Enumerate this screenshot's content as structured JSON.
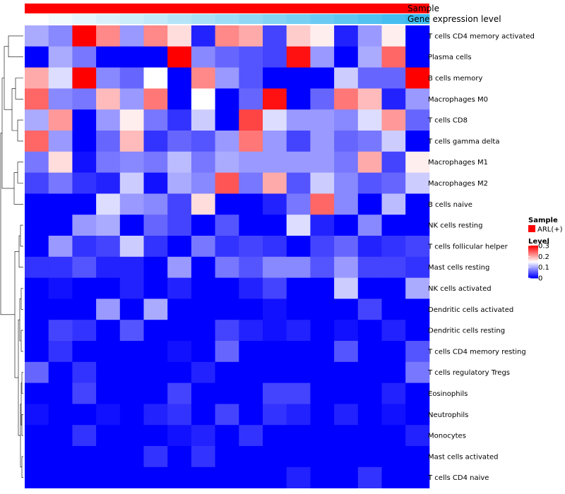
{
  "chart_data": {
    "type": "heatmap",
    "annotation_labels": [
      "Sample",
      "Gene expression level"
    ],
    "sample_annotation": {
      "label": "ARL(+)",
      "color": "#ff0000"
    },
    "expression_colors": [
      "#ffffff",
      "#f2fafe",
      "#e6f6fd",
      "#daf1fc",
      "#cdedfb",
      "#c1e9fa",
      "#b5e4f9",
      "#a8e0f8",
      "#9cdcf7",
      "#90d7f6",
      "#84d3f5",
      "#77cff4",
      "#6bcaf3",
      "#5fc6f2",
      "#52c2f1",
      "#46bdf0",
      "#3ab9ef",
      "#2db5ee"
    ],
    "legend": {
      "sample_title": "Sample",
      "sample_entry": "ARL(+)",
      "level_title": "Level",
      "ticks": [
        {
          "value": 0.3,
          "label": "0.3"
        },
        {
          "value": 0.2,
          "label": "0.2"
        },
        {
          "value": 0.1,
          "label": "0.1"
        },
        {
          "value": 0,
          "label": "0"
        }
      ]
    },
    "color_scale": {
      "min": 0,
      "mid": 0.15,
      "max": 0.3,
      "low": "#0000ff",
      "mid_color": "#ffffff",
      "high": "#ff0000"
    },
    "rows": [
      "T cells CD4 memory activated",
      "Plasma cells",
      "B cells memory",
      "Macrophages M0",
      "T cells CD8",
      "T cells gamma delta",
      "Macrophages M1",
      "Macrophages M2",
      "B cells naive",
      "NK cells resting",
      "T cells follicular helper",
      "Mast cells resting",
      "NK cells activated",
      "Dendritic cells activated",
      "Dendritic cells resting",
      "T cells CD4 memory resting",
      "T cells regulatory  Tregs",
      "Eosinophils",
      "Neutrophils",
      "Monocytes",
      "Mast cells activated",
      "T cells CD4 naive"
    ],
    "values": [
      [
        0.1,
        0.08,
        0.3,
        0.22,
        0.09,
        0.22,
        0.17,
        0.02,
        0.22,
        0.2,
        0.04,
        0.18,
        0.16,
        0.02,
        0.09,
        0.16,
        0.0
      ],
      [
        0.0,
        0.1,
        0.07,
        0.0,
        0.0,
        0.0,
        0.3,
        0.08,
        0.06,
        0.05,
        0.04,
        0.29,
        0.09,
        0.0,
        0.1,
        0.24,
        0.0
      ],
      [
        0.2,
        0.13,
        0.3,
        0.08,
        0.06,
        0.15,
        0.0,
        0.22,
        0.09,
        0.05,
        0.0,
        0.0,
        0.0,
        0.12,
        0.06,
        0.06,
        0.3
      ],
      [
        0.24,
        0.08,
        0.07,
        0.19,
        0.09,
        0.23,
        0.0,
        0.15,
        0.0,
        0.06,
        0.29,
        0.0,
        0.06,
        0.23,
        0.19,
        0.02,
        0.09
      ],
      [
        0.1,
        0.21,
        0.0,
        0.09,
        0.16,
        0.07,
        0.03,
        0.12,
        0.0,
        0.26,
        0.13,
        0.09,
        0.09,
        0.08,
        0.13,
        0.21,
        0.06
      ],
      [
        0.24,
        0.09,
        0.0,
        0.06,
        0.19,
        0.03,
        0.06,
        0.05,
        0.09,
        0.23,
        0.09,
        0.04,
        0.09,
        0.06,
        0.07,
        0.12,
        0.0
      ],
      [
        0.07,
        0.17,
        0.01,
        0.07,
        0.08,
        0.07,
        0.11,
        0.07,
        0.1,
        0.09,
        0.09,
        0.09,
        0.09,
        0.07,
        0.2,
        0.04,
        0.16
      ],
      [
        0.04,
        0.07,
        0.03,
        0.02,
        0.12,
        0.01,
        0.1,
        0.08,
        0.25,
        0.07,
        0.2,
        0.05,
        0.12,
        0.08,
        0.05,
        0.06,
        0.12
      ],
      [
        0.0,
        0.0,
        0.0,
        0.13,
        0.09,
        0.08,
        0.04,
        0.17,
        0.0,
        0.0,
        0.02,
        0.07,
        0.24,
        0.08,
        0.0,
        0.11,
        0.0
      ],
      [
        0.0,
        0.0,
        0.09,
        0.1,
        0.0,
        0.06,
        0.04,
        0.0,
        0.05,
        0.0,
        0.0,
        0.13,
        0.02,
        0.0,
        0.08,
        0.0,
        0.0
      ],
      [
        0.0,
        0.09,
        0.03,
        0.04,
        0.12,
        0.03,
        0.0,
        0.07,
        0.03,
        0.04,
        0.03,
        0.0,
        0.04,
        0.06,
        0.02,
        0.03,
        0.04
      ],
      [
        0.03,
        0.03,
        0.05,
        0.02,
        0.02,
        0.0,
        0.09,
        0.0,
        0.07,
        0.05,
        0.08,
        0.08,
        0.05,
        0.09,
        0.04,
        0.04,
        0.03
      ],
      [
        0.0,
        0.01,
        0.0,
        0.0,
        0.02,
        0.0,
        0.02,
        0.0,
        0.0,
        0.02,
        0.04,
        0.0,
        0.0,
        0.12,
        0.0,
        0.0,
        0.1
      ],
      [
        0.0,
        0.0,
        0.0,
        0.09,
        0.0,
        0.1,
        0.0,
        0.0,
        0.0,
        0.0,
        0.01,
        0.0,
        0.0,
        0.0,
        0.04,
        0.0,
        0.0
      ],
      [
        0.0,
        0.04,
        0.03,
        0.0,
        0.05,
        0.0,
        0.0,
        0.0,
        0.04,
        0.02,
        0.01,
        0.02,
        0.0,
        0.01,
        0.0,
        0.02,
        0.0
      ],
      [
        0.0,
        0.03,
        0.0,
        0.0,
        0.0,
        0.0,
        0.01,
        0.0,
        0.06,
        0.0,
        0.0,
        0.0,
        0.0,
        0.05,
        0.0,
        0.0,
        0.05
      ],
      [
        0.06,
        0.0,
        0.03,
        0.0,
        0.0,
        0.0,
        0.0,
        0.02,
        0.0,
        0.0,
        0.0,
        0.0,
        0.0,
        0.0,
        0.0,
        0.0,
        0.07
      ],
      [
        0.0,
        0.0,
        0.04,
        0.0,
        0.0,
        0.0,
        0.04,
        0.0,
        0.0,
        0.0,
        0.04,
        0.04,
        0.0,
        0.0,
        0.0,
        0.02,
        0.0
      ],
      [
        0.01,
        0.0,
        0.0,
        0.01,
        0.0,
        0.02,
        0.03,
        0.0,
        0.04,
        0.0,
        0.03,
        0.02,
        0.0,
        0.02,
        0.0,
        0.01,
        0.0
      ],
      [
        0.0,
        0.0,
        0.03,
        0.0,
        0.0,
        0.0,
        0.01,
        0.02,
        0.0,
        0.03,
        0.0,
        0.0,
        0.0,
        0.0,
        0.0,
        0.0,
        0.02
      ],
      [
        0.0,
        0.0,
        0.0,
        0.0,
        0.0,
        0.03,
        0.0,
        0.03,
        0.0,
        0.0,
        0.0,
        0.0,
        0.0,
        0.0,
        0.0,
        0.0,
        0.0
      ],
      [
        0.0,
        0.0,
        0.0,
        0.0,
        0.0,
        0.0,
        0.0,
        0.0,
        0.0,
        0.0,
        0.0,
        0.02,
        0.0,
        0.0,
        0.03,
        0.0,
        0.0
      ]
    ]
  }
}
